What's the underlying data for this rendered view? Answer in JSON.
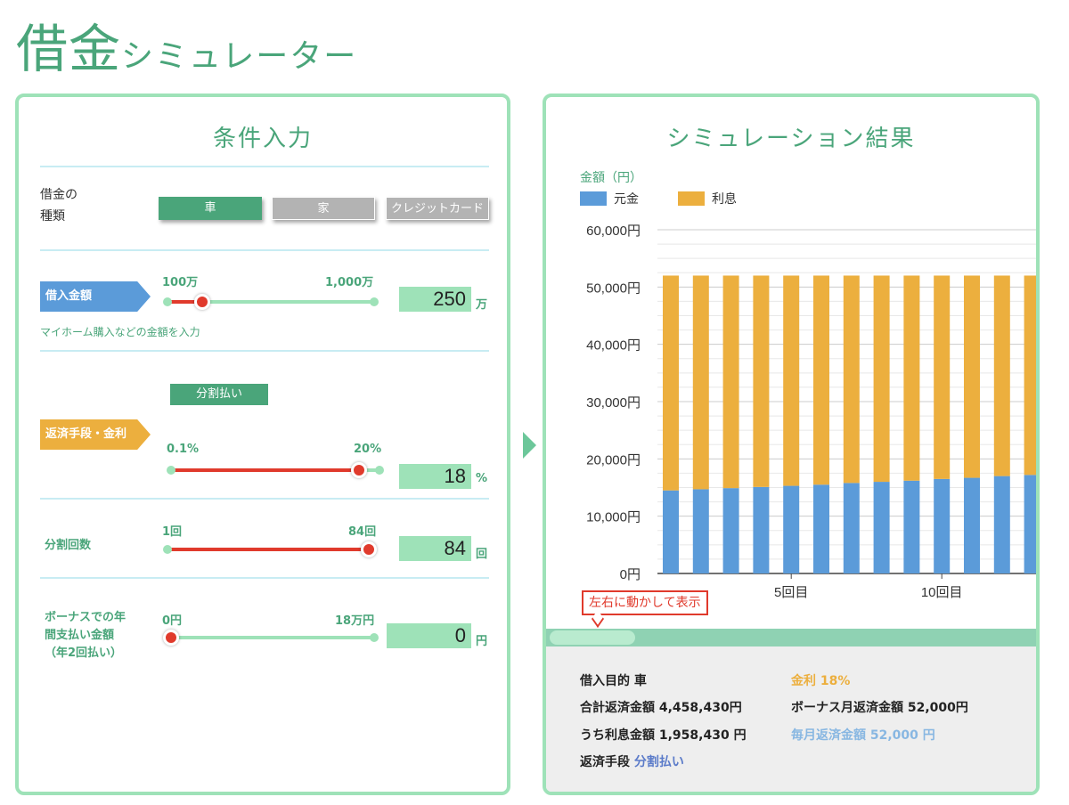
{
  "header": {
    "title_big": "借金",
    "title_small": "シミュレーター"
  },
  "input_panel": {
    "title": "条件入力",
    "loan_type": {
      "label_line1": "借金の",
      "label_line2": "種類",
      "options": [
        "車",
        "家",
        "クレジットカード"
      ],
      "selected": "車"
    },
    "amount": {
      "tag": "借入金額",
      "min_label": "100万",
      "max_label": "1,000万",
      "value": "250",
      "unit": "万",
      "fraction": 0.167,
      "note": "マイホーム購入などの金額を入力"
    },
    "method": {
      "chip": "分割払い",
      "tag": "返済手段・金利",
      "min_label": "0.1%",
      "max_label": "20%",
      "value": "18",
      "unit": "%",
      "fraction": 0.9
    },
    "installments": {
      "label": "分割回数",
      "min_label": "1回",
      "max_label": "84回",
      "value": "84",
      "unit": "回",
      "fraction": 1.0
    },
    "bonus": {
      "label_line1": "ボーナスでの年",
      "label_line2": "間支払い金額",
      "label_line3": "（年2回払い）",
      "min_label": "0円",
      "max_label": "18万円",
      "value": "0",
      "unit": "円",
      "fraction": 0.0
    }
  },
  "result_panel": {
    "title": "シミュレーション結果",
    "y_axis_title": "金額（円）",
    "hint": "左右に動かして表示",
    "summary": {
      "purpose_label": "借入目的",
      "purpose_value": "車",
      "rate_label": "金利",
      "rate_value": "18%",
      "total_label": "合計返済金額",
      "total_value": "4,458,430円",
      "bonus_month_label": "ボーナス月返済金額",
      "bonus_month_value": "52,000円",
      "interest_label": "うち利息金額",
      "interest_value": "1,958,430 円",
      "monthly_label": "毎月返済金額",
      "monthly_value": "52,000 円",
      "method_label": "返済手段",
      "method_value": "分割払い"
    }
  },
  "colors": {
    "green": "#4aa57a",
    "principal": "#5b9bd9",
    "interest": "#ecaf3e",
    "rate_text": "#ecaf3e",
    "monthly_text": "#88b7e2",
    "method_text": "#5b7bc9"
  },
  "chart_data": {
    "type": "bar",
    "stacked": true,
    "ylabel": "金額（円）",
    "ylim": [
      0,
      60000
    ],
    "yticks": [
      "0円",
      "10,000円",
      "20,000円",
      "30,000円",
      "40,000円",
      "50,000円",
      "60,000円"
    ],
    "x_tick_labels": [
      {
        "index": 5,
        "label": "5回目"
      },
      {
        "index": 10,
        "label": "10回目"
      }
    ],
    "categories": [
      1,
      2,
      3,
      4,
      5,
      6,
      7,
      8,
      9,
      10,
      11,
      12,
      13
    ],
    "series": [
      {
        "name": "元金",
        "color": "#5b9bd9",
        "values": [
          14500,
          14700,
          14900,
          15100,
          15300,
          15500,
          15800,
          16000,
          16200,
          16500,
          16700,
          17000,
          17200
        ]
      },
      {
        "name": "利息",
        "color": "#ecaf3e",
        "values": [
          37500,
          37300,
          37100,
          36900,
          36700,
          36500,
          36200,
          36000,
          35800,
          35500,
          35300,
          35000,
          34800
        ]
      }
    ],
    "grid": true,
    "legend": "top-left"
  }
}
